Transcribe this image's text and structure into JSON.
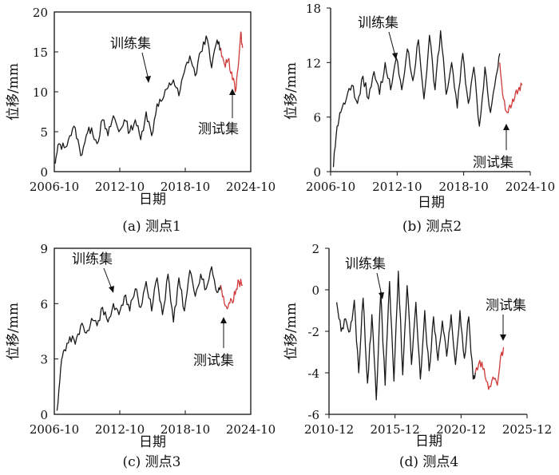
{
  "chart_data": [
    {
      "type": "line",
      "caption": "(a) 测点1",
      "xlabel": "日期",
      "ylabel": "位移/mm",
      "xticks": [
        "2006-10",
        "2012-10",
        "2018-10",
        "2024-10"
      ],
      "xlim": [
        "2006-10",
        "2024-10"
      ],
      "ylim": [
        0,
        20
      ],
      "yticks": [
        0,
        5,
        10,
        15,
        20
      ],
      "annotations": [
        "训练集",
        "测试集"
      ],
      "series": [
        {
          "name": "训练集",
          "color": "#1a1a1a",
          "x": [
            "2006-11",
            "2007-03",
            "2007-09",
            "2008-03",
            "2008-09",
            "2009-03",
            "2009-09",
            "2010-03",
            "2010-09",
            "2011-03",
            "2011-09",
            "2012-03",
            "2012-09",
            "2013-03",
            "2013-09",
            "2014-03",
            "2014-09",
            "2015-03",
            "2015-09",
            "2016-03",
            "2016-09",
            "2017-03",
            "2017-09",
            "2018-03",
            "2018-09",
            "2019-03",
            "2019-09",
            "2020-03",
            "2020-09",
            "2021-03",
            "2021-09",
            "2022-01"
          ],
          "y": [
            1.0,
            3.5,
            3.0,
            4.5,
            5.5,
            2.0,
            4.5,
            5.5,
            3.5,
            6.5,
            4.5,
            7.0,
            5.0,
            6.5,
            5.0,
            6.5,
            4.0,
            7.5,
            4.5,
            8.5,
            9.0,
            10.5,
            11.5,
            9.5,
            12.5,
            14.5,
            12.0,
            15.0,
            17.0,
            13.0,
            16.5,
            15.5
          ]
        },
        {
          "name": "测试集",
          "color": "#d03a3a",
          "x": [
            "2022-01",
            "2022-05",
            "2022-09",
            "2023-01",
            "2023-05",
            "2023-08",
            "2023-11",
            "2024-01"
          ],
          "y": [
            15.5,
            13.5,
            14.0,
            12.5,
            10.0,
            13.0,
            17.5,
            15.5
          ]
        }
      ]
    },
    {
      "type": "line",
      "caption": "(b) 测点2",
      "xlabel": "日期",
      "ylabel": "位移/mm",
      "xticks": [
        "2006-10",
        "2012-10",
        "2018-10",
        "2024-10"
      ],
      "xlim": [
        "2006-10",
        "2024-10"
      ],
      "ylim": [
        0,
        18
      ],
      "yticks": [
        0,
        6,
        12,
        18
      ],
      "annotations": [
        "训练集",
        "测试集"
      ],
      "series": [
        {
          "name": "训练集",
          "color": "#1a1a1a",
          "x": [
            "2007-01",
            "2007-05",
            "2007-09",
            "2008-03",
            "2008-09",
            "2009-03",
            "2009-09",
            "2010-03",
            "2010-09",
            "2011-03",
            "2011-09",
            "2012-03",
            "2012-09",
            "2013-03",
            "2013-09",
            "2014-03",
            "2014-09",
            "2015-03",
            "2015-09",
            "2016-03",
            "2016-09",
            "2017-03",
            "2017-09",
            "2018-03",
            "2018-09",
            "2019-03",
            "2019-09",
            "2020-03",
            "2020-09",
            "2021-03",
            "2021-09",
            "2022-01"
          ],
          "y": [
            0.5,
            5.0,
            6.5,
            8.0,
            9.5,
            7.5,
            10.5,
            8.0,
            11.0,
            8.5,
            12.0,
            9.0,
            12.5,
            9.0,
            13.5,
            10.0,
            14.5,
            8.0,
            15.0,
            9.0,
            15.5,
            8.5,
            12.0,
            7.0,
            13.0,
            7.5,
            11.5,
            5.0,
            11.5,
            6.5,
            10.5,
            13.0
          ]
        },
        {
          "name": "测试集",
          "color": "#d03a3a",
          "x": [
            "2022-01",
            "2022-05",
            "2022-09",
            "2023-01",
            "2023-05",
            "2023-09",
            "2024-01"
          ],
          "y": [
            12.0,
            8.0,
            6.5,
            7.0,
            8.0,
            9.0,
            9.5
          ]
        }
      ]
    },
    {
      "type": "line",
      "caption": "(c) 测点3",
      "xlabel": "日期",
      "ylabel": "位移/mm",
      "xticks": [
        "2006-10",
        "2012-10",
        "2018-10",
        "2024-10"
      ],
      "xlim": [
        "2006-10",
        "2024-10"
      ],
      "ylim": [
        0,
        9
      ],
      "yticks": [
        0,
        3,
        6,
        9
      ],
      "annotations": [
        "训练集",
        "测试集"
      ],
      "series": [
        {
          "name": "训练集",
          "color": "#1a1a1a",
          "x": [
            "2007-01",
            "2007-05",
            "2007-09",
            "2008-03",
            "2008-09",
            "2009-03",
            "2009-09",
            "2010-03",
            "2010-09",
            "2011-03",
            "2011-09",
            "2012-03",
            "2012-09",
            "2013-03",
            "2013-09",
            "2014-03",
            "2014-09",
            "2015-03",
            "2015-09",
            "2016-03",
            "2016-09",
            "2017-03",
            "2017-09",
            "2018-03",
            "2018-09",
            "2019-03",
            "2019-09",
            "2020-03",
            "2020-09",
            "2021-03",
            "2021-09",
            "2022-01"
          ],
          "y": [
            0.2,
            2.5,
            3.5,
            4.2,
            3.8,
            4.8,
            4.4,
            5.2,
            4.8,
            5.8,
            5.0,
            6.0,
            5.4,
            6.4,
            5.6,
            6.8,
            5.8,
            7.2,
            5.6,
            7.4,
            5.4,
            7.6,
            5.0,
            7.4,
            5.6,
            7.8,
            6.4,
            7.6,
            6.8,
            8.0,
            6.6,
            7.0
          ]
        },
        {
          "name": "测试集",
          "color": "#d03a3a",
          "x": [
            "2022-01",
            "2022-05",
            "2022-09",
            "2023-01",
            "2023-05",
            "2023-09",
            "2024-01"
          ],
          "y": [
            7.0,
            6.0,
            5.8,
            6.2,
            6.5,
            7.2,
            7.0
          ]
        }
      ]
    },
    {
      "type": "line",
      "caption": "(d) 测点4",
      "xlabel": "日期",
      "ylabel": "位移/mm",
      "xticks": [
        "2010-12",
        "2015-12",
        "2020-12",
        "2025-12"
      ],
      "xlim": [
        "2010-12",
        "2025-12"
      ],
      "ylim": [
        -6,
        2
      ],
      "yticks": [
        -6,
        -4,
        -2,
        0,
        2
      ],
      "annotations": [
        "训练集",
        "测试集"
      ],
      "series": [
        {
          "name": "训练集",
          "color": "#1a1a1a",
          "x": [
            "2011-07",
            "2011-11",
            "2012-03",
            "2012-07",
            "2012-11",
            "2013-03",
            "2013-07",
            "2013-11",
            "2014-03",
            "2014-07",
            "2014-11",
            "2015-03",
            "2015-07",
            "2015-11",
            "2016-03",
            "2016-07",
            "2016-11",
            "2017-03",
            "2017-07",
            "2017-11",
            "2018-03",
            "2018-07",
            "2018-11",
            "2019-03",
            "2019-07",
            "2019-11",
            "2020-03",
            "2020-07",
            "2020-11",
            "2021-03",
            "2021-07",
            "2021-11",
            "2022-01"
          ],
          "y": [
            -0.6,
            -2.0,
            -1.4,
            -2.0,
            -0.5,
            -4.0,
            -0.4,
            -4.5,
            -1.2,
            -5.3,
            -0.1,
            -4.6,
            0.4,
            -4.4,
            0.9,
            -4.1,
            0.2,
            -3.6,
            -0.6,
            -4.3,
            -1.0,
            -3.9,
            -1.3,
            -3.4,
            -1.5,
            -3.2,
            -1.2,
            -3.6,
            -1.0,
            -3.3,
            -1.3,
            -4.3,
            -4.0
          ]
        },
        {
          "name": "测试集",
          "color": "#d03a3a",
          "x": [
            "2022-01",
            "2022-05",
            "2022-09",
            "2023-01",
            "2023-05",
            "2023-09",
            "2024-01",
            "2024-03"
          ],
          "y": [
            -4.0,
            -3.4,
            -3.8,
            -4.8,
            -4.2,
            -4.6,
            -3.0,
            -2.8
          ]
        }
      ]
    }
  ]
}
